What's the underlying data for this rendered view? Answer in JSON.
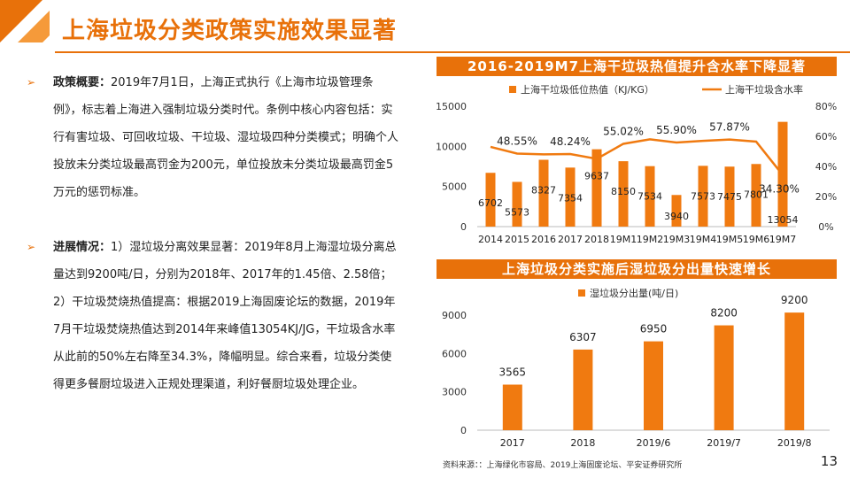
{
  "header": {
    "title": "上海垃圾分类政策实施效果显著",
    "accent_color": "#E8710A"
  },
  "left": {
    "p1_label": "政策概要：",
    "p1_text": "2019年7月1日，上海正式执行《上海市垃圾管理条例》，标志着上海进入强制垃圾分类时代。条例中核心内容包括：实行有害垃圾、可回收垃圾、干垃圾、湿垃圾四种分类模式；明确个人投放未分类垃圾最高罚金为200元，单位投放未分类垃圾最高罚金5万元的惩罚标准。",
    "p2_label": "进展情况：",
    "p2_text": "1）湿垃圾分离效果显著：2019年8月上海湿垃圾分离总量达到9200吨/日，分别为2018年、2017年的1.45倍、2.58倍；2）干垃圾焚烧热值提高：根据2019上海固废论坛的数据，2019年7月干垃圾焚烧热值达到2014年来峰值13054KJ/JG，干垃圾含水率从此前的50%左右降至34.3%，降幅明显。综合来看，垃圾分类使得更多餐厨垃圾进入正规处理渠道，利好餐厨垃圾处理企业。"
  },
  "chart_data": [
    {
      "type": "bar",
      "title": "2016-2019M7上海干垃圾热值提升含水率下降显著",
      "categories": [
        "2014",
        "2015",
        "2016",
        "2017",
        "2018",
        "19M1",
        "19M2",
        "19M3",
        "19M4",
        "19M5",
        "19M6",
        "19M7"
      ],
      "series": [
        {
          "name": "上海干垃圾低位热值（KJ/KG）",
          "type": "bar",
          "axis": "left",
          "values": [
            6702,
            5573,
            8327,
            7354,
            9637,
            8150,
            7534,
            3940,
            7573,
            7475,
            7801,
            13054
          ]
        },
        {
          "name": "上海干垃圾含水率",
          "type": "line",
          "axis": "right",
          "values": [
            0.53,
            0.4855,
            0.48,
            0.4824,
            0.45,
            0.5502,
            0.58,
            0.559,
            0.57,
            0.5787,
            0.565,
            0.343
          ]
        }
      ],
      "line_labels": [
        "",
        "48.55%",
        "",
        "48.24%",
        "",
        "55.02%",
        "",
        "55.90%",
        "",
        "57.87%",
        "",
        "34.30%"
      ],
      "ylim": [
        0,
        15000
      ],
      "yticks": [
        "0",
        "5000",
        "10000",
        "15000"
      ],
      "y2lim": [
        0,
        0.8
      ],
      "y2ticks": [
        "0%",
        "20%",
        "40%",
        "60%",
        "80%"
      ],
      "legend": "top",
      "bar_color": "#F07A10",
      "line_color": "#F07A10"
    },
    {
      "type": "bar",
      "title": "上海垃圾分类实施后湿垃圾分出量快速增长",
      "categories": [
        "2017",
        "2018",
        "2019/6",
        "2019/7",
        "2019/8"
      ],
      "series": [
        {
          "name": "湿垃圾分出量(吨/日)",
          "values": [
            3565,
            6307,
            6950,
            8200,
            9200
          ]
        }
      ],
      "ylim": [
        0,
        9000
      ],
      "yticks": [
        "0",
        "3000",
        "6000",
        "9000"
      ],
      "legend": "top-left",
      "bar_color": "#F07A10"
    }
  ],
  "footer": {
    "source": "资料来源：：上海绿化市容局、2019上海固废论坛、平安证券研究所",
    "page_number": "13"
  }
}
